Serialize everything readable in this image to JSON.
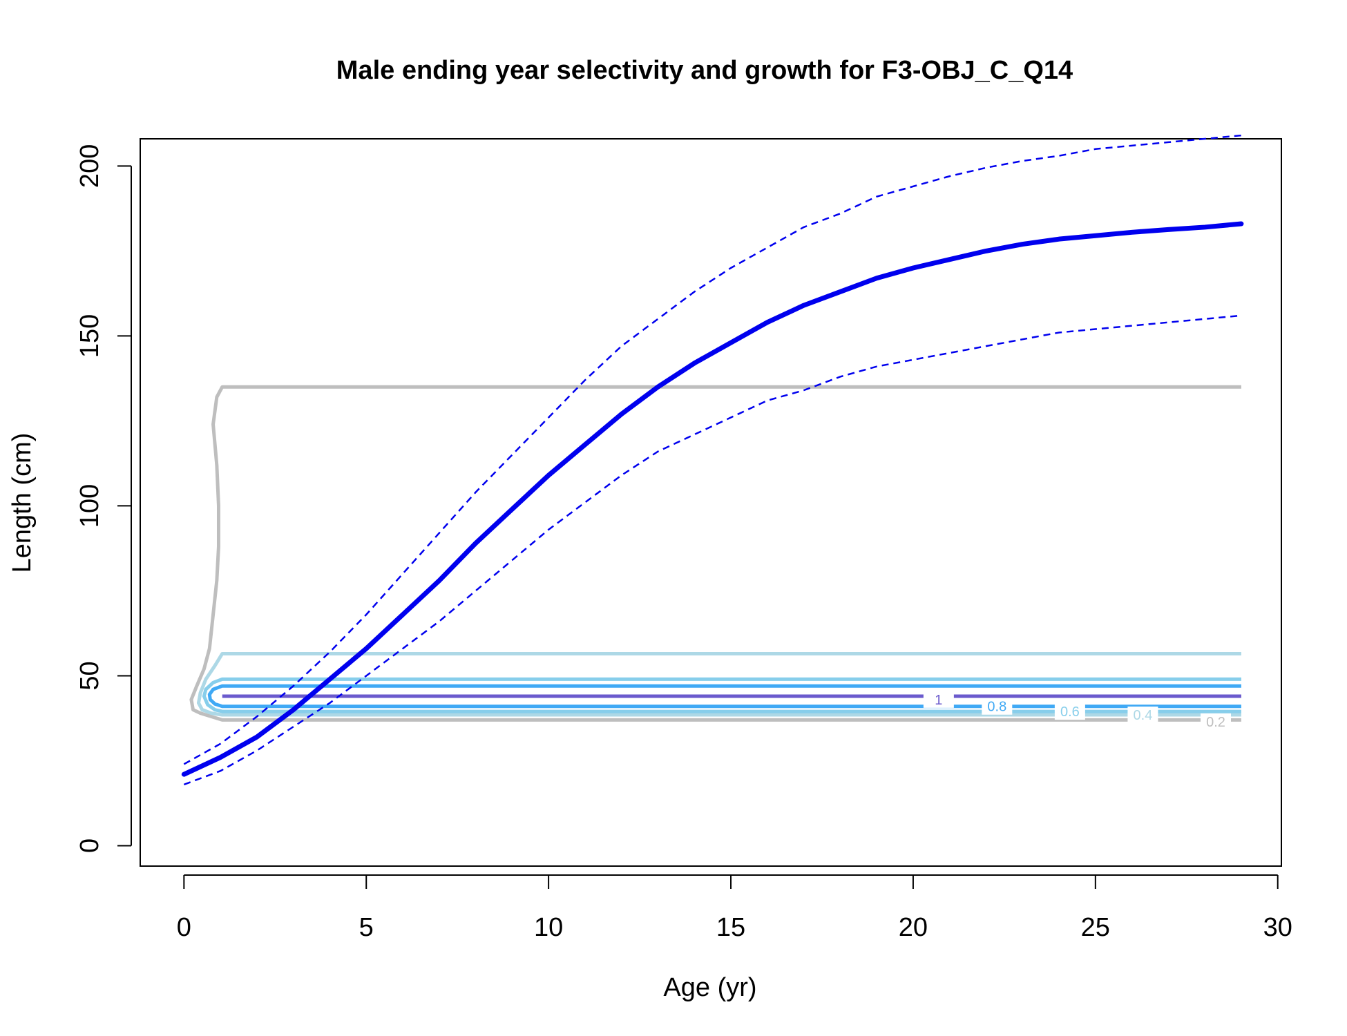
{
  "chart_data": {
    "type": "line",
    "title": "Male ending year selectivity and growth for F3-OBJ_C_Q14",
    "xlabel": "Age (yr)",
    "ylabel": "Length (cm)",
    "xlim": [
      -1.2,
      30.1
    ],
    "ylim": [
      -6,
      208
    ],
    "xticks": [
      0,
      5,
      10,
      15,
      20,
      25,
      30
    ],
    "yticks": [
      0,
      50,
      100,
      150,
      200
    ],
    "grid": false,
    "legend": "none",
    "growth": {
      "color": "#0000ee",
      "x": [
        0,
        1,
        2,
        3,
        4,
        5,
        6,
        7,
        8,
        9,
        10,
        11,
        12,
        13,
        14,
        15,
        16,
        17,
        18,
        19,
        20,
        21,
        22,
        23,
        24,
        25,
        26,
        27,
        28,
        29
      ],
      "mean": [
        21,
        26,
        32,
        40,
        49,
        58,
        68,
        78,
        89,
        99,
        109,
        118,
        127,
        135,
        142,
        148,
        154,
        159,
        163,
        167,
        170,
        172.5,
        175,
        177,
        178.5,
        179.5,
        180.5,
        181.3,
        182,
        183
      ],
      "upper": [
        24,
        30,
        38,
        47,
        57,
        68,
        80,
        92,
        104,
        115,
        126,
        137,
        147,
        155,
        163,
        170,
        176,
        182,
        186,
        191,
        194,
        197,
        199.5,
        201.5,
        203,
        205,
        206,
        207,
        208,
        209
      ],
      "lower": [
        18,
        22,
        28,
        35,
        42,
        50,
        58,
        66,
        75,
        84,
        93,
        101,
        109,
        116,
        121,
        126,
        131,
        134,
        138,
        141,
        143,
        145,
        147,
        149,
        151,
        152,
        153,
        154,
        155,
        156
      ]
    },
    "selectivity_contours": [
      {
        "level": "0.2",
        "color": "#bebebe",
        "upper_y": 135,
        "lower_y": 37,
        "label_x": 28.3,
        "label_y": 36.5,
        "left_x": [
          1.05,
          0.9,
          0.8,
          0.9,
          0.95,
          0.95,
          0.9,
          0.8,
          0.7,
          0.55,
          0.35,
          0.2,
          0.25,
          0.45,
          0.75,
          1.05
        ],
        "left_y": [
          135,
          132,
          124,
          112,
          100,
          88,
          78,
          68,
          58,
          52,
          47,
          43,
          40,
          39,
          38,
          37
        ]
      },
      {
        "level": "0.4",
        "color": "#add8e6",
        "upper_y": 56.5,
        "lower_y": 38.5,
        "label_x": 26.3,
        "label_y": 38.5,
        "left_x": [
          1.05,
          0.85,
          0.6,
          0.45,
          0.4,
          0.5,
          0.75,
          1.05
        ],
        "left_y": [
          56.5,
          53,
          49,
          45,
          42,
          40,
          39,
          38.5
        ]
      },
      {
        "level": "0.6",
        "color": "#87ceeb",
        "upper_y": 49,
        "lower_y": 39.5,
        "label_x": 24.3,
        "label_y": 39.5,
        "left_x": [
          1.05,
          0.8,
          0.6,
          0.55,
          0.65,
          0.85,
          1.05
        ],
        "left_y": [
          49,
          48,
          46,
          44,
          41.5,
          40,
          39.5
        ]
      },
      {
        "level": "0.8",
        "color": "#3fa9f5",
        "upper_y": 47,
        "lower_y": 41,
        "label_x": 22.3,
        "label_y": 41,
        "left_x": [
          1.05,
          0.8,
          0.7,
          0.72,
          0.85,
          1.05
        ],
        "left_y": [
          47,
          46,
          44.5,
          43,
          41.7,
          41
        ]
      },
      {
        "level": "1",
        "color": "#6a5acd",
        "upper_y": 44,
        "lower_y": 44,
        "label_x": 20.7,
        "label_y": 43,
        "left_x": [
          1.05
        ],
        "left_y": [
          44
        ]
      }
    ]
  }
}
